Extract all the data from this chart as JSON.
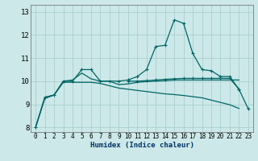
{
  "title": "",
  "xlabel": "Humidex (Indice chaleur)",
  "ylabel": "",
  "background_color": "#cce8e8",
  "grid_color": "#aacfcf",
  "line_color": "#006666",
  "xlim": [
    -0.5,
    23.5
  ],
  "ylim": [
    7.8,
    13.3
  ],
  "yticks": [
    8,
    9,
    10,
    11,
    12,
    13
  ],
  "xticks": [
    0,
    1,
    2,
    3,
    4,
    5,
    6,
    7,
    8,
    9,
    10,
    11,
    12,
    13,
    14,
    15,
    16,
    17,
    18,
    19,
    20,
    21,
    22,
    23
  ],
  "line1_x": [
    0,
    1,
    2,
    3,
    4,
    5,
    6,
    7,
    8,
    9,
    10,
    11,
    12,
    13,
    14,
    15,
    16,
    17,
    18,
    19,
    20,
    21,
    22
  ],
  "line1_y": [
    8.0,
    9.3,
    9.4,
    10.0,
    10.0,
    10.5,
    10.5,
    10.0,
    10.0,
    10.0,
    10.05,
    10.2,
    10.5,
    11.5,
    11.55,
    12.65,
    12.5,
    11.2,
    10.5,
    10.45,
    10.2,
    10.2,
    9.65
  ],
  "line2_x": [
    0,
    1,
    2,
    3,
    4,
    5,
    6,
    7,
    8,
    9,
    10,
    11,
    12,
    13,
    14,
    15,
    16,
    17,
    18,
    19,
    20,
    21,
    22
  ],
  "line2_y": [
    8.0,
    9.3,
    9.4,
    10.0,
    10.05,
    10.35,
    10.1,
    10.0,
    10.0,
    9.85,
    9.88,
    9.95,
    9.98,
    10.0,
    10.02,
    10.05,
    10.05,
    10.05,
    10.05,
    10.05,
    10.05,
    10.05,
    10.05
  ],
  "line3_x": [
    0,
    1,
    2,
    3,
    4,
    5,
    6,
    7,
    8,
    9,
    10,
    11,
    12,
    13,
    14,
    15,
    16,
    17,
    18,
    19,
    20,
    21,
    22
  ],
  "line3_y": [
    8.0,
    9.25,
    9.4,
    9.95,
    9.95,
    9.95,
    9.95,
    9.9,
    9.8,
    9.7,
    9.65,
    9.6,
    9.55,
    9.5,
    9.45,
    9.42,
    9.38,
    9.33,
    9.28,
    9.18,
    9.08,
    8.98,
    8.82
  ],
  "line4_x": [
    10,
    11,
    12,
    13,
    14,
    15,
    16,
    17,
    18,
    19,
    20,
    21,
    22,
    23
  ],
  "line4_y": [
    10.0,
    10.0,
    10.02,
    10.05,
    10.08,
    10.1,
    10.12,
    10.12,
    10.12,
    10.12,
    10.12,
    10.12,
    9.65,
    8.8
  ]
}
